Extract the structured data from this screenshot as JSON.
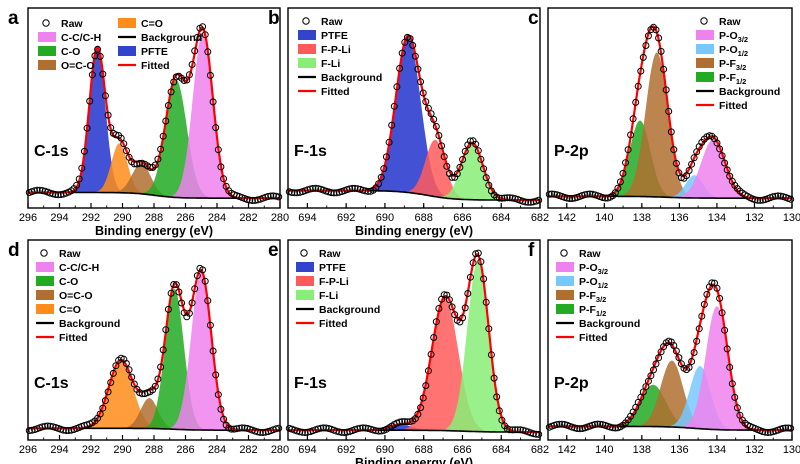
{
  "chart_data": [
    {
      "panel": "a",
      "type": "line",
      "core_label": "C-1s",
      "xlabel": "Binding energy (eV)",
      "xlim": [
        296,
        280
      ],
      "x_ticks": [
        296,
        294,
        292,
        290,
        288,
        286,
        284,
        282,
        280
      ],
      "legend": [
        {
          "label": "Raw",
          "kind": "marker"
        },
        {
          "label": "C-C/C-H",
          "kind": "swatch",
          "color": "#ee82ee"
        },
        {
          "label": "C-O",
          "kind": "swatch",
          "color": "#22aa22"
        },
        {
          "label": "O=C-O",
          "kind": "swatch",
          "color": "#b06e30"
        },
        {
          "label": "C=O",
          "kind": "swatch",
          "color": "#ff8c1a"
        },
        {
          "label": "Background",
          "kind": "line",
          "color": "#000000"
        },
        {
          "label": "PFTE",
          "kind": "swatch",
          "color": "#3344cc"
        },
        {
          "label": "Fitted",
          "kind": "line",
          "color": "#ff0000"
        }
      ],
      "background": {
        "low": 0.02,
        "high": 0.05
      },
      "peaks": [
        {
          "name": "PFTE",
          "center": 291.6,
          "height": 0.76,
          "fwhm": 1.2,
          "color": "#2233cc"
        },
        {
          "name": "C=O",
          "center": 290.2,
          "height": 0.26,
          "fwhm": 1.2,
          "color": "#ff8c1a"
        },
        {
          "name": "O=C-O",
          "center": 288.8,
          "height": 0.16,
          "fwhm": 1.4,
          "color": "#b06e30"
        },
        {
          "name": "C-O",
          "center": 286.6,
          "height": 0.62,
          "fwhm": 1.6,
          "color": "#22aa22"
        },
        {
          "name": "C-C/C-H",
          "center": 284.9,
          "height": 0.87,
          "fwhm": 1.5,
          "color": "#ee82ee"
        }
      ]
    },
    {
      "panel": "b",
      "type": "line",
      "core_label": "F-1s",
      "xlabel": "Binding energy (eV)",
      "xlim": [
        695,
        682
      ],
      "x_ticks": [
        694,
        692,
        690,
        688,
        686,
        684,
        682
      ],
      "legend": [
        {
          "label": "Raw",
          "kind": "marker"
        },
        {
          "label": "PTFE",
          "kind": "swatch",
          "color": "#3344cc"
        },
        {
          "label": "F-P-Li",
          "kind": "swatch",
          "color": "#ff5a5a"
        },
        {
          "label": "F-Li",
          "kind": "swatch",
          "color": "#88ee77"
        },
        {
          "label": "Background",
          "kind": "line",
          "color": "#000000"
        },
        {
          "label": "Fitted",
          "kind": "line",
          "color": "#ff0000"
        }
      ],
      "background": {
        "low": 0.01,
        "high": 0.06
      },
      "peaks": [
        {
          "name": "PTFE",
          "center": 688.8,
          "height": 0.82,
          "fwhm": 1.5,
          "color": "#2233cc"
        },
        {
          "name": "F-P-Li",
          "center": 687.4,
          "height": 0.3,
          "fwhm": 1.2,
          "color": "#ff5a5a"
        },
        {
          "name": "F-Li",
          "center": 685.5,
          "height": 0.3,
          "fwhm": 1.3,
          "color": "#88ee77"
        }
      ]
    },
    {
      "panel": "c",
      "type": "line",
      "core_label": "P-2p",
      "xlabel": "",
      "xlim": [
        143,
        130
      ],
      "x_ticks": [
        142,
        140,
        138,
        136,
        134,
        132,
        130
      ],
      "legend": [
        {
          "label": "Raw",
          "kind": "marker"
        },
        {
          "label": "P-O",
          "sub": "3/2",
          "kind": "swatch",
          "color": "#ee82ee"
        },
        {
          "label": "P-O",
          "sub": "1/2",
          "kind": "swatch",
          "color": "#77c8ff"
        },
        {
          "label": "P-F",
          "sub": "3/2",
          "kind": "swatch",
          "color": "#b06e30"
        },
        {
          "label": "P-F",
          "sub": "1/2",
          "kind": "swatch",
          "color": "#22aa22"
        },
        {
          "label": "Background",
          "kind": "line",
          "color": "#000000"
        },
        {
          "label": "Fitted",
          "kind": "line",
          "color": "#ff0000"
        }
      ],
      "background": {
        "low": 0.02,
        "high": 0.03
      },
      "peaks": [
        {
          "name": "P-F1/2",
          "center": 138.1,
          "height": 0.4,
          "fwhm": 1.3,
          "color": "#22aa22"
        },
        {
          "name": "P-F3/2",
          "center": 137.2,
          "height": 0.76,
          "fwhm": 1.4,
          "color": "#b06e30"
        },
        {
          "name": "P-O1/2",
          "center": 135.2,
          "height": 0.12,
          "fwhm": 1.1,
          "color": "#77c8ff"
        },
        {
          "name": "P-O3/2",
          "center": 134.2,
          "height": 0.31,
          "fwhm": 1.5,
          "color": "#ee82ee"
        }
      ]
    },
    {
      "panel": "d",
      "type": "line",
      "core_label": "C-1s",
      "xlabel": "",
      "xlim": [
        296,
        280
      ],
      "x_ticks": [
        296,
        294,
        292,
        290,
        288,
        286,
        284,
        282,
        280
      ],
      "legend": [
        {
          "label": "Raw",
          "kind": "marker"
        },
        {
          "label": "C-C/C-H",
          "kind": "swatch",
          "color": "#ee82ee"
        },
        {
          "label": "C-O",
          "kind": "swatch",
          "color": "#22aa22"
        },
        {
          "label": "O=C-O",
          "kind": "swatch",
          "color": "#b06e30"
        },
        {
          "label": "C=O",
          "kind": "swatch",
          "color": "#ff8c1a"
        },
        {
          "label": "Background",
          "kind": "line",
          "color": "#000000"
        },
        {
          "label": "Fitted",
          "kind": "line",
          "color": "#ff0000"
        }
      ],
      "background": {
        "low": 0.02,
        "high": 0.03
      },
      "peaks": [
        {
          "name": "C=O",
          "center": 290.1,
          "height": 0.36,
          "fwhm": 1.8,
          "color": "#ff8c1a"
        },
        {
          "name": "O=C-O",
          "center": 288.3,
          "height": 0.16,
          "fwhm": 1.3,
          "color": "#b06e30"
        },
        {
          "name": "C-O",
          "center": 286.7,
          "height": 0.74,
          "fwhm": 1.4,
          "color": "#22aa22"
        },
        {
          "name": "C-C/C-H",
          "center": 285.0,
          "height": 0.83,
          "fwhm": 1.5,
          "color": "#ee82ee"
        }
      ]
    },
    {
      "panel": "e",
      "type": "line",
      "core_label": "F-1s",
      "xlabel": "Binding energy (eV)",
      "xlim": [
        695,
        682
      ],
      "x_ticks": [
        694,
        692,
        690,
        688,
        686,
        684,
        682
      ],
      "legend": [
        {
          "label": "Raw",
          "kind": "marker"
        },
        {
          "label": "PTFE",
          "kind": "swatch",
          "color": "#3344cc"
        },
        {
          "label": "F-P-Li",
          "kind": "swatch",
          "color": "#ff5a5a"
        },
        {
          "label": "F-Li",
          "kind": "swatch",
          "color": "#88ee77"
        },
        {
          "label": "Background",
          "kind": "line",
          "color": "#000000"
        },
        {
          "label": "Fitted",
          "kind": "line",
          "color": "#ff0000"
        }
      ],
      "background": {
        "low": 0.01,
        "high": 0.02
      },
      "peaks": [
        {
          "name": "PTFE",
          "center": 689.2,
          "height": 0.03,
          "fwhm": 1.4,
          "color": "#2233cc"
        },
        {
          "name": "F-P-Li",
          "center": 686.9,
          "height": 0.7,
          "fwhm": 1.6,
          "color": "#ff5a5a"
        },
        {
          "name": "F-Li",
          "center": 685.2,
          "height": 0.9,
          "fwhm": 1.3,
          "color": "#88ee77"
        }
      ]
    },
    {
      "panel": "f",
      "type": "line",
      "core_label": "P-2p",
      "xlabel": "",
      "xlim": [
        143,
        130
      ],
      "x_ticks": [
        142,
        140,
        138,
        136,
        134,
        132,
        130
      ],
      "legend": [
        {
          "label": "Raw",
          "kind": "marker"
        },
        {
          "label": "P-O",
          "sub": "3/2",
          "kind": "swatch",
          "color": "#ee82ee"
        },
        {
          "label": "P-O",
          "sub": "1/2",
          "kind": "swatch",
          "color": "#77c8ff"
        },
        {
          "label": "P-F",
          "sub": "3/2",
          "kind": "swatch",
          "color": "#b06e30"
        },
        {
          "label": "P-F",
          "sub": "1/2",
          "kind": "swatch",
          "color": "#22aa22"
        },
        {
          "label": "Background",
          "kind": "line",
          "color": "#000000"
        },
        {
          "label": "Fitted",
          "kind": "line",
          "color": "#ff0000"
        }
      ],
      "background": {
        "low": 0.02,
        "high": 0.04
      },
      "peaks": [
        {
          "name": "P-F1/2",
          "center": 137.4,
          "height": 0.22,
          "fwhm": 1.6,
          "color": "#22aa22"
        },
        {
          "name": "P-F3/2",
          "center": 136.4,
          "height": 0.35,
          "fwhm": 1.4,
          "color": "#b06e30"
        },
        {
          "name": "P-O1/2",
          "center": 134.9,
          "height": 0.33,
          "fwhm": 1.3,
          "color": "#77c8ff"
        },
        {
          "name": "P-O3/2",
          "center": 134.0,
          "height": 0.65,
          "fwhm": 1.4,
          "color": "#ee82ee"
        }
      ]
    }
  ]
}
